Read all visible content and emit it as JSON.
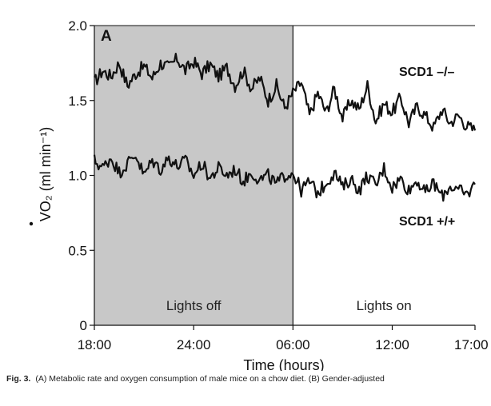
{
  "caption": {
    "label": "Fig. 3.",
    "text": "(A) Metabolic rate and oxygen consumption of male mice on a chow diet. (B) Gender-adjusted"
  },
  "chart_data": {
    "type": "line",
    "panel_label": "A",
    "xlabel": "Time (hours)",
    "ylabel": "VO₂ (ml min⁻¹)",
    "ylim": [
      0,
      2.0
    ],
    "xlim": [
      0,
      23
    ],
    "x_unit": "hours from 18:00",
    "x_ticks": [
      {
        "value": 0,
        "label": "18:00"
      },
      {
        "value": 6,
        "label": "24:00"
      },
      {
        "value": 12,
        "label": "06:00"
      },
      {
        "value": 18,
        "label": "12:00"
      },
      {
        "value": 23,
        "label": "17:00"
      }
    ],
    "y_ticks": [
      {
        "value": 0,
        "label": "0"
      },
      {
        "value": 0.5,
        "label": "0.5"
      },
      {
        "value": 1.0,
        "label": "1.0"
      },
      {
        "value": 1.5,
        "label": "1.5"
      },
      {
        "value": 2.0,
        "label": "2.0"
      }
    ],
    "regions": [
      {
        "label": "Lights off",
        "x_start": 0,
        "x_end": 12,
        "shaded": true
      },
      {
        "label": "Lights on",
        "x_start": 12,
        "x_end": 23,
        "shaded": false
      }
    ],
    "series": [
      {
        "name": "SCD1 –/–",
        "x": [
          0,
          0.5,
          1,
          1.5,
          2,
          2.5,
          3,
          3.5,
          4,
          4.5,
          5,
          5.5,
          6,
          6.5,
          7,
          7.5,
          8,
          8.5,
          9,
          9.5,
          10,
          10.5,
          11,
          11.5,
          12,
          12.5,
          13,
          13.5,
          14,
          14.5,
          15,
          15.5,
          16,
          16.5,
          17,
          17.5,
          18,
          18.5,
          19,
          19.5,
          20,
          20.5,
          21,
          21.5,
          22,
          22.5,
          23
        ],
        "values": [
          1.62,
          1.7,
          1.66,
          1.75,
          1.6,
          1.68,
          1.73,
          1.65,
          1.75,
          1.72,
          1.78,
          1.7,
          1.76,
          1.68,
          1.74,
          1.66,
          1.72,
          1.6,
          1.7,
          1.58,
          1.65,
          1.5,
          1.6,
          1.45,
          1.55,
          1.62,
          1.4,
          1.55,
          1.42,
          1.58,
          1.38,
          1.5,
          1.44,
          1.6,
          1.36,
          1.48,
          1.42,
          1.52,
          1.35,
          1.46,
          1.4,
          1.32,
          1.44,
          1.35,
          1.4,
          1.33,
          1.3
        ]
      },
      {
        "name": "SCD1 +/+",
        "x": [
          0,
          0.5,
          1,
          1.5,
          2,
          2.5,
          3,
          3.5,
          4,
          4.5,
          5,
          5.5,
          6,
          6.5,
          7,
          7.5,
          8,
          8.5,
          9,
          9.5,
          10,
          10.5,
          11,
          11.5,
          12,
          12.5,
          13,
          13.5,
          14,
          14.5,
          15,
          15.5,
          16,
          16.5,
          17,
          17.5,
          18,
          18.5,
          19,
          19.5,
          20,
          20.5,
          21,
          21.5,
          22,
          22.5,
          23
        ],
        "values": [
          1.1,
          1.05,
          1.12,
          1.02,
          1.08,
          1.14,
          1.0,
          1.1,
          1.04,
          1.12,
          1.06,
          1.1,
          1.0,
          1.08,
          0.98,
          1.05,
          1.0,
          1.04,
          0.96,
          1.02,
          0.97,
          1.0,
          0.94,
          1.0,
          1.02,
          0.9,
          0.96,
          0.88,
          0.95,
          1.02,
          0.92,
          0.98,
          0.9,
          1.0,
          0.93,
          1.05,
          0.92,
          0.98,
          0.9,
          0.97,
          0.88,
          0.95,
          0.86,
          0.93,
          0.9,
          0.87,
          0.94
        ]
      }
    ],
    "grid": false
  }
}
